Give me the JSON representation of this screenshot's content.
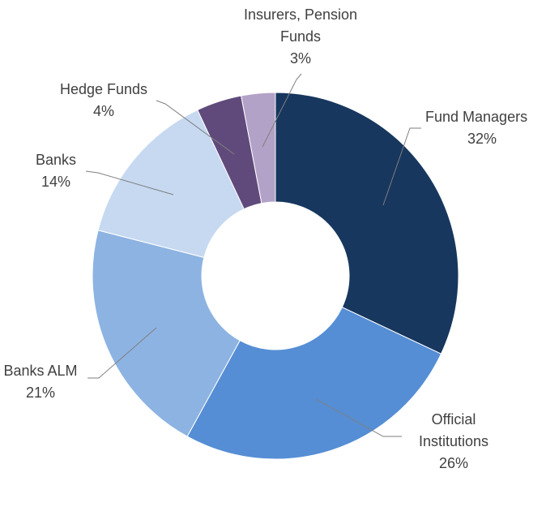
{
  "chart_data": {
    "type": "pie",
    "variant": "donut",
    "title": "",
    "legend": "none",
    "slices": [
      {
        "name": "Fund Managers",
        "label_lines": [
          "Fund Managers"
        ],
        "value": 32,
        "value_label": "32%",
        "color": "#17375e"
      },
      {
        "name": "Official Institutions",
        "label_lines": [
          "Official",
          "Institutions"
        ],
        "value": 26,
        "value_label": "26%",
        "color": "#558ed5"
      },
      {
        "name": "Banks ALM",
        "label_lines": [
          "Banks ALM"
        ],
        "value": 21,
        "value_label": "21%",
        "color": "#8db3e2"
      },
      {
        "name": "Banks",
        "label_lines": [
          "Banks"
        ],
        "value": 14,
        "value_label": "14%",
        "color": "#c6d9f1"
      },
      {
        "name": "Hedge Funds",
        "label_lines": [
          "Hedge Funds"
        ],
        "value": 4,
        "value_label": "4%",
        "color": "#604a7b"
      },
      {
        "name": "Insurers, Pension Funds",
        "label_lines": [
          "Insurers, Pension",
          "Funds"
        ],
        "value": 3,
        "value_label": "3%",
        "color": "#b3a2c7"
      }
    ]
  }
}
